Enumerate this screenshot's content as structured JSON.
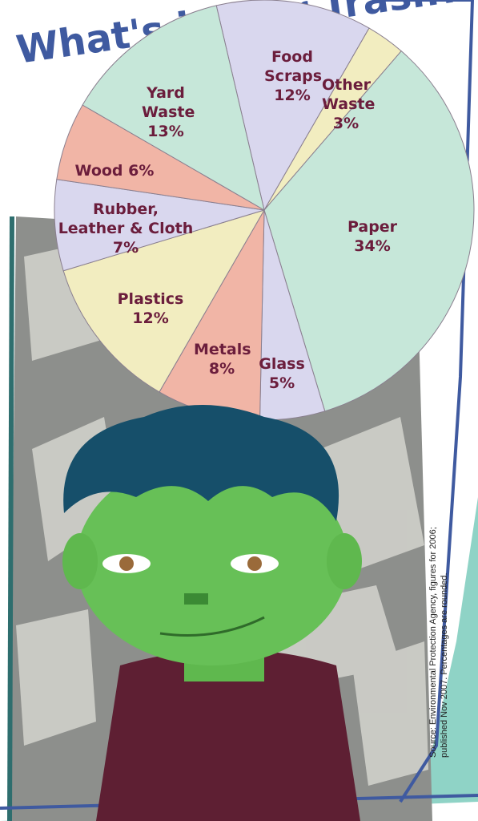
{
  "chart_data": {
    "type": "pie",
    "title": "What's in Our Trash?",
    "categories": [
      "Food Scraps",
      "Other Waste",
      "Paper",
      "Glass",
      "Metals",
      "Plastics",
      "Rubber, Leather & Cloth",
      "Wood",
      "Yard Waste"
    ],
    "values": [
      12,
      3,
      34,
      5,
      8,
      12,
      7,
      6,
      13
    ],
    "value_labels": [
      "12%",
      "3%",
      "34%",
      "5%",
      "8%",
      "12%",
      "7%",
      "6%",
      "13%"
    ],
    "colors": [
      "#d9d7ee",
      "#f2edc0",
      "#c6e7d9",
      "#d9d7ee",
      "#f1b5a6",
      "#f2edc0",
      "#d9d7ee",
      "#f1b5a6",
      "#c6e7d9"
    ],
    "source": "Source: Environmental Protection Agency, figures for 2006; published Nov 2007. Percentages are rounded."
  }
}
